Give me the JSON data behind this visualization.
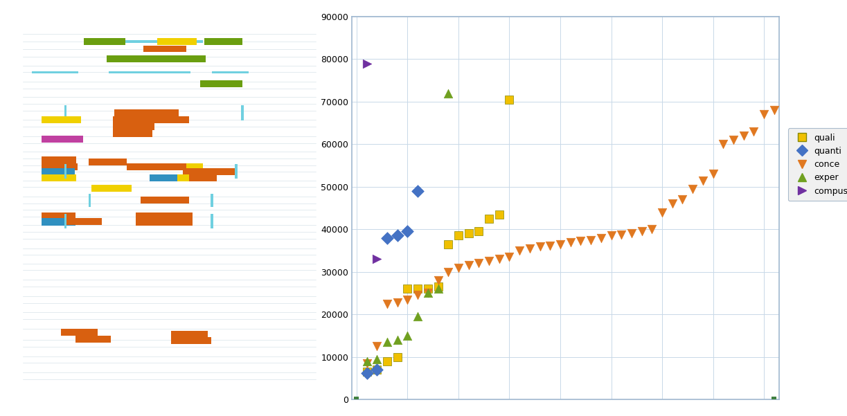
{
  "scatter": {
    "quali": {
      "color": "#f0c000",
      "marker": "s",
      "markersize": 9,
      "points": [
        [
          1,
          6500
        ],
        [
          2,
          7000
        ],
        [
          3,
          9000
        ],
        [
          4,
          10000
        ],
        [
          5,
          26000
        ],
        [
          6,
          26000
        ],
        [
          7,
          26000
        ],
        [
          8,
          26500
        ],
        [
          9,
          36500
        ],
        [
          10,
          38500
        ],
        [
          11,
          39000
        ],
        [
          12,
          39500
        ],
        [
          13,
          42500
        ],
        [
          14,
          43500
        ],
        [
          15,
          70500
        ]
      ]
    },
    "quanti": {
      "color": "#4472c4",
      "marker": "D",
      "markersize": 9,
      "points": [
        [
          1,
          6200
        ],
        [
          2,
          7000
        ],
        [
          3,
          38000
        ],
        [
          4,
          38500
        ],
        [
          5,
          39500
        ],
        [
          6,
          49000
        ]
      ]
    },
    "conce": {
      "color": "#e07820",
      "marker": "v",
      "markersize": 9,
      "points": [
        [
          1,
          8500
        ],
        [
          2,
          12500
        ],
        [
          3,
          22500
        ],
        [
          4,
          22800
        ],
        [
          5,
          23500
        ],
        [
          6,
          24500
        ],
        [
          7,
          25000
        ],
        [
          8,
          28000
        ],
        [
          9,
          30000
        ],
        [
          10,
          31000
        ],
        [
          11,
          31500
        ],
        [
          12,
          32000
        ],
        [
          13,
          32500
        ],
        [
          14,
          33000
        ],
        [
          15,
          33500
        ],
        [
          16,
          35000
        ],
        [
          17,
          35500
        ],
        [
          18,
          36000
        ],
        [
          19,
          36200
        ],
        [
          20,
          36500
        ],
        [
          21,
          37000
        ],
        [
          22,
          37200
        ],
        [
          23,
          37500
        ],
        [
          24,
          38000
        ],
        [
          25,
          38500
        ],
        [
          26,
          38800
        ],
        [
          27,
          39000
        ],
        [
          28,
          39500
        ],
        [
          29,
          40000
        ],
        [
          30,
          44000
        ],
        [
          31,
          46000
        ],
        [
          32,
          47000
        ],
        [
          33,
          49500
        ],
        [
          34,
          51500
        ],
        [
          35,
          53000
        ],
        [
          36,
          60000
        ],
        [
          37,
          61000
        ],
        [
          38,
          62000
        ],
        [
          39,
          63000
        ],
        [
          40,
          67000
        ],
        [
          41,
          68000
        ]
      ]
    },
    "exper": {
      "color": "#70a020",
      "marker": "^",
      "markersize": 9,
      "points": [
        [
          1,
          9000
        ],
        [
          2,
          9500
        ],
        [
          3,
          13500
        ],
        [
          4,
          14000
        ],
        [
          5,
          15000
        ],
        [
          6,
          19500
        ],
        [
          7,
          25000
        ],
        [
          8,
          26000
        ],
        [
          9,
          72000
        ]
      ]
    },
    "compus": {
      "color": "#7030a0",
      "marker": "P",
      "markersize": 9,
      "points": [
        [
          1,
          79000
        ],
        [
          2,
          33000
        ]
      ]
    }
  },
  "legend_labels": [
    "quali",
    "quanti",
    "conce",
    "exper",
    "compus"
  ],
  "legend_colors": [
    "#f0c000",
    "#4472c4",
    "#e07820",
    "#70a020",
    "#7030a0"
  ],
  "legend_markers": [
    "s",
    "D",
    "v",
    "^",
    "P"
  ],
  "ylim": [
    0,
    90000
  ],
  "yticks": [
    0,
    10000,
    20000,
    30000,
    40000,
    50000,
    60000,
    70000,
    80000,
    90000
  ],
  "scatter_dot_zero": {
    "color": "#408040",
    "size": 25
  },
  "background_color": "#ffffff",
  "spine_color": "#a0b8d0",
  "grid_color": "#c8d8e8",
  "texty_colors": {
    "orange": "#d86010",
    "yellow": "#f0d000",
    "green": "#6a9e10",
    "blue": "#3090c0",
    "cyan": "#70d0e0",
    "magenta": "#c040a0"
  }
}
